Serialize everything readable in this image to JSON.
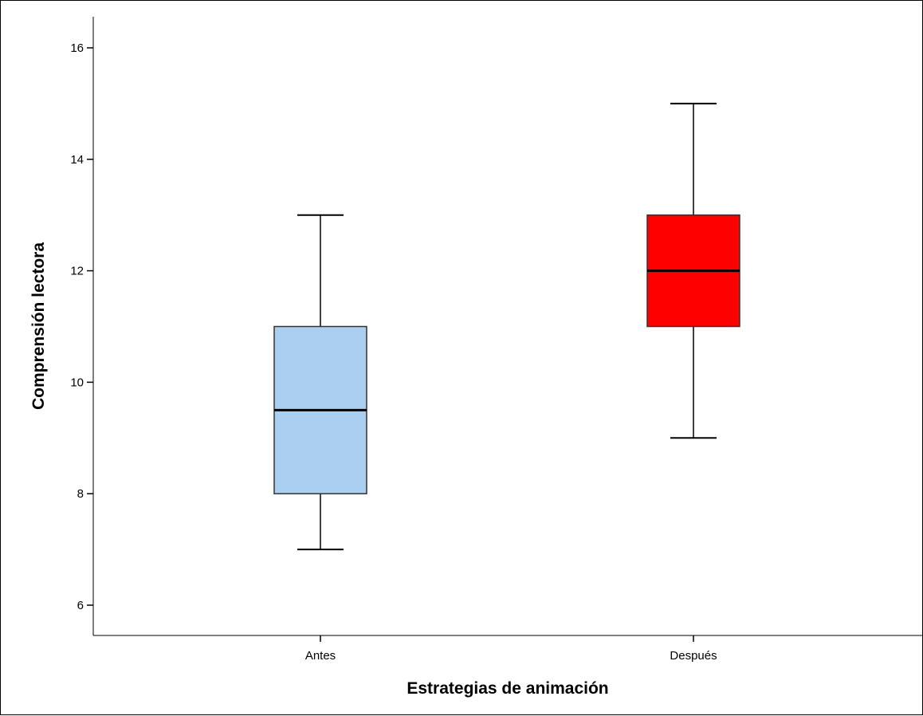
{
  "chart_data": {
    "type": "boxplot",
    "title": "",
    "xlabel": "Estrategias de animación",
    "ylabel": "Comprensión lectora",
    "categories": [
      "Antes",
      "Después"
    ],
    "boxes": [
      {
        "category": "Antes",
        "min": 7,
        "q1": 8,
        "median": 9.5,
        "q3": 11,
        "max": 13,
        "color": "#abcfee"
      },
      {
        "category": "Después",
        "min": 9,
        "q1": 11,
        "median": 12,
        "q3": 13,
        "max": 15,
        "color": "#ff0000"
      }
    ],
    "ylim": [
      5.5,
      16.6
    ],
    "yticks": [
      6,
      8,
      10,
      12,
      14,
      16
    ],
    "grid": false,
    "legend": "none"
  }
}
